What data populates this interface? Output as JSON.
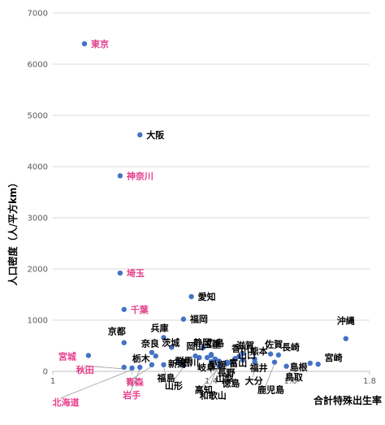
{
  "chart_data": {
    "type": "scatter",
    "xlabel": "合計特殊出生率",
    "ylabel": "人口密度（人/平方km）",
    "xlim": [
      1,
      1.8
    ],
    "ylim": [
      0,
      7000
    ],
    "x_ticks": [
      "1",
      "1.2",
      "1.4",
      "1.6",
      "1.8"
    ],
    "y_ticks": [
      "0",
      "1000",
      "2000",
      "3000",
      "4000",
      "5000",
      "6000",
      "7000"
    ],
    "grid": "horizontal",
    "marker_color": "#4472C4",
    "points": [
      {
        "name": "東京",
        "x": 1.08,
        "y": 6400,
        "color": "#E83E8C"
      },
      {
        "name": "大阪",
        "x": 1.22,
        "y": 4620,
        "color": "#000000"
      },
      {
        "name": "神奈川",
        "x": 1.17,
        "y": 3820,
        "color": "#E83E8C"
      },
      {
        "name": "埼玉",
        "x": 1.17,
        "y": 1920,
        "color": "#E83E8C"
      },
      {
        "name": "愛知",
        "x": 1.35,
        "y": 1460,
        "color": "#000000"
      },
      {
        "name": "千葉",
        "x": 1.18,
        "y": 1210,
        "color": "#E83E8C"
      },
      {
        "name": "福岡",
        "x": 1.33,
        "y": 1020,
        "color": "#000000"
      },
      {
        "name": "兵庫",
        "x": 1.28,
        "y": 660,
        "color": "#000000"
      },
      {
        "name": "京都",
        "x": 1.18,
        "y": 560,
        "color": "#000000"
      },
      {
        "name": "茨城",
        "x": 1.3,
        "y": 470,
        "color": "#000000"
      },
      {
        "name": "静岡",
        "x": 1.38,
        "y": 470,
        "color": "#000000"
      },
      {
        "name": "滋賀",
        "x": 1.48,
        "y": 350,
        "color": "#000000"
      },
      {
        "name": "奈良",
        "x": 1.25,
        "y": 370,
        "color": "#000000"
      },
      {
        "name": "三重",
        "x": 1.4,
        "y": 310,
        "color": "#000000"
      },
      {
        "name": "香川",
        "x": 1.47,
        "y": 290,
        "color": "#000000"
      },
      {
        "name": "佐賀",
        "x": 1.55,
        "y": 340,
        "color": "#000000"
      },
      {
        "name": "長崎",
        "x": 1.57,
        "y": 320,
        "color": "#000000"
      },
      {
        "name": "沖縄",
        "x": 1.74,
        "y": 640,
        "color": "#000000"
      },
      {
        "name": "岡山",
        "x": 1.37,
        "y": 270,
        "color": "#000000"
      },
      {
        "name": "広島",
        "x": 1.4,
        "y": 330,
        "color": "#000000"
      },
      {
        "name": "熊本",
        "x": 1.51,
        "y": 240,
        "color": "#000000"
      },
      {
        "name": "栃木",
        "x": 1.26,
        "y": 300,
        "color": "#000000"
      },
      {
        "name": "新潟",
        "x": 1.32,
        "y": 180,
        "color": "#000000"
      },
      {
        "name": "群馬",
        "x": 1.36,
        "y": 300,
        "color": "#000000"
      },
      {
        "name": "石川",
        "x": 1.39,
        "y": 270,
        "color": "#000000"
      },
      {
        "name": "愛媛",
        "x": 1.41,
        "y": 240,
        "color": "#000000"
      },
      {
        "name": "山口",
        "x": 1.48,
        "y": 220,
        "color": "#000000"
      },
      {
        "name": "宮崎",
        "x": 1.67,
        "y": 140,
        "color": "#000000"
      },
      {
        "name": "宮城",
        "x": 1.09,
        "y": 310,
        "color": "#E83E8C"
      },
      {
        "name": "秋田",
        "x": 1.18,
        "y": 80,
        "color": "#E83E8C"
      },
      {
        "name": "福島",
        "x": 1.28,
        "y": 130,
        "color": "#000000"
      },
      {
        "name": "岐阜",
        "x": 1.4,
        "y": 190,
        "color": "#000000"
      },
      {
        "name": "長野",
        "x": 1.44,
        "y": 150,
        "color": "#000000"
      },
      {
        "name": "富山",
        "x": 1.46,
        "y": 250,
        "color": "#000000"
      },
      {
        "name": "福井",
        "x": 1.51,
        "y": 180,
        "color": "#000000"
      },
      {
        "name": "島根",
        "x": 1.59,
        "y": 100,
        "color": "#000000"
      },
      {
        "name": "鳥取",
        "x": 1.65,
        "y": 160,
        "color": "#000000"
      },
      {
        "name": "山形",
        "x": 1.33,
        "y": 120,
        "color": "#000000"
      },
      {
        "name": "高知",
        "x": 1.42,
        "y": 100,
        "color": "#000000"
      },
      {
        "name": "山梨",
        "x": 1.44,
        "y": 180,
        "color": "#000000"
      },
      {
        "name": "徳島",
        "x": 1.45,
        "y": 170,
        "color": "#000000"
      },
      {
        "name": "和歌山",
        "x": 1.42,
        "y": 200,
        "color": "#000000"
      },
      {
        "name": "大分",
        "x": 1.51,
        "y": 180,
        "color": "#000000"
      },
      {
        "name": "鹿児島",
        "x": 1.56,
        "y": 180,
        "color": "#000000"
      },
      {
        "name": "北海道",
        "x": 1.2,
        "y": 65,
        "color": "#E83E8C"
      },
      {
        "name": "青森",
        "x": 1.25,
        "y": 130,
        "color": "#E83E8C"
      },
      {
        "name": "岩手",
        "x": 1.22,
        "y": 80,
        "color": "#E83E8C"
      }
    ]
  }
}
